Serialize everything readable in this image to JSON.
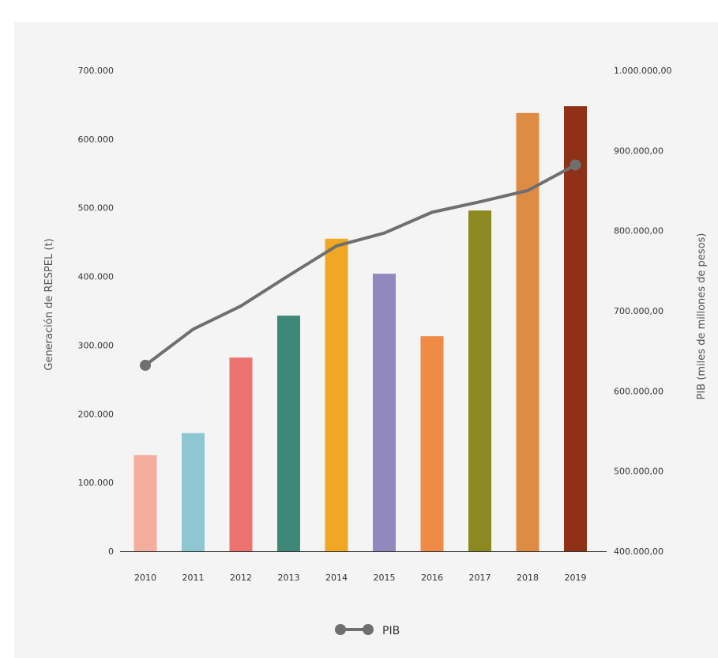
{
  "chart_data": {
    "type": "bar",
    "categories": [
      "2010",
      "2011",
      "2012",
      "2013",
      "2014",
      "2015",
      "2016",
      "2017",
      "2018",
      "2019"
    ],
    "series": [
      {
        "axis": "left",
        "type": "bar",
        "values": [
          140000,
          172000,
          282000,
          343000,
          455000,
          404000,
          313000,
          496000,
          638000,
          648000
        ],
        "colors": [
          "#f4ae9d",
          "#8ec7d2",
          "#ed7370",
          "#3e8878",
          "#f0a824",
          "#9388be",
          "#ee8b45",
          "#8b8a20",
          "#de8c44",
          "#8e3116"
        ]
      },
      {
        "name": "PIB",
        "axis": "right",
        "type": "line",
        "color": "#6f6f6f",
        "values": [
          632000,
          677000,
          706000,
          744000,
          781000,
          797000,
          823000,
          836000,
          850000,
          882000
        ]
      }
    ],
    "ylabel_left": "Generación de RESPEL (t)",
    "ylabel_right": "PIB (miles de millones de pesos)",
    "ylim_left": [
      0,
      700000
    ],
    "ylim_right": [
      400000,
      1000000
    ],
    "yticks_left": [
      "0",
      "100.000",
      "200.000",
      "300.000",
      "400.000",
      "500.000",
      "600.000",
      "700.000"
    ],
    "yticks_right": [
      "400.000,00",
      "500.000,00",
      "600.000,00",
      "700.000,00",
      "800.000,00",
      "900.000,00",
      "1.000.000,00"
    ],
    "legend": {
      "position": "bottom",
      "entries": [
        "PIB"
      ]
    },
    "grid": false
  }
}
